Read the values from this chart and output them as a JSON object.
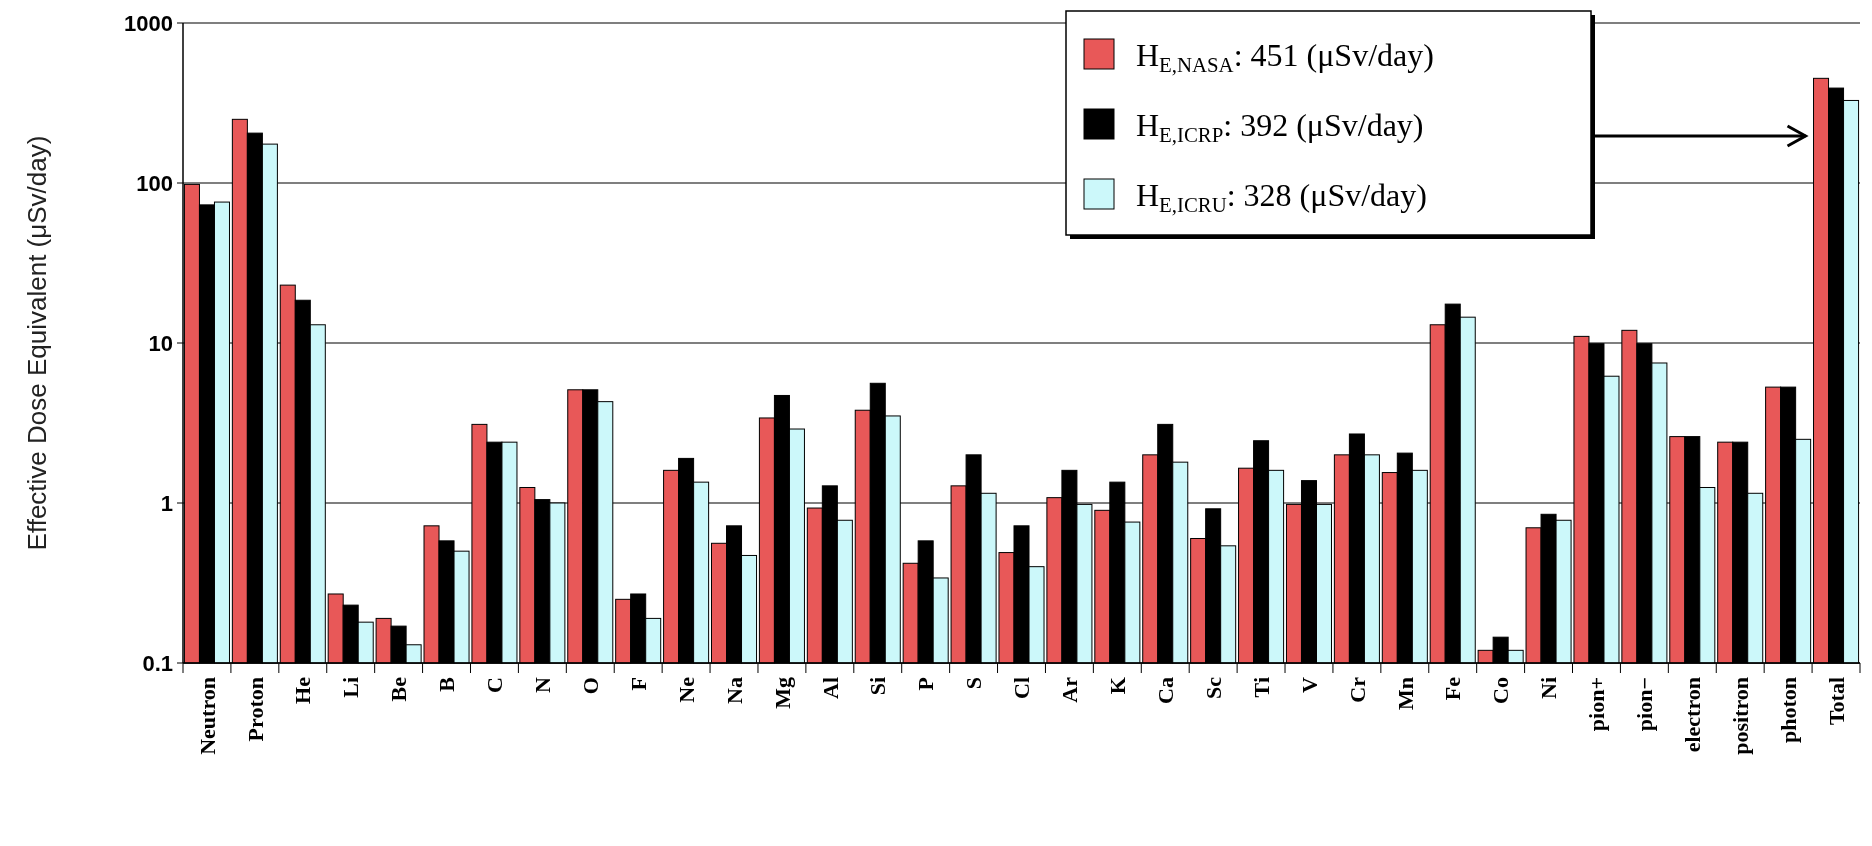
{
  "chart_data": {
    "type": "bar",
    "ylabel": "Effective Dose Equivalent (μSv/day)",
    "categories": [
      "Neutron",
      "Proton",
      "He",
      "Li",
      "Be",
      "B",
      "C",
      "N",
      "O",
      "F",
      "Ne",
      "Na",
      "Mg",
      "Al",
      "Si",
      "P",
      "S",
      "Cl",
      "Ar",
      "K",
      "Ca",
      "Sc",
      "Ti",
      "V",
      "Cr",
      "Mn",
      "Fe",
      "Co",
      "Ni",
      "pion+",
      "pion−",
      "electron",
      "positron",
      "photon",
      "Total"
    ],
    "series": [
      {
        "name": "H$_{E,NASA}$: 451 (μSv/day)",
        "color": "#e85858",
        "values": [
          98,
          250,
          23,
          0.27,
          0.19,
          0.72,
          3.1,
          1.25,
          5.1,
          0.25,
          1.6,
          0.56,
          3.4,
          0.93,
          3.8,
          0.42,
          1.28,
          0.49,
          1.08,
          0.9,
          2.0,
          0.6,
          1.65,
          0.98,
          2.0,
          1.55,
          13,
          0.12,
          0.7,
          11,
          12,
          2.6,
          2.4,
          5.3,
          451
        ]
      },
      {
        "name": "H$_{E,ICRP}$: 392 (μSv/day)",
        "color": "#000000",
        "values": [
          73,
          205,
          18.5,
          0.23,
          0.17,
          0.58,
          2.4,
          1.05,
          5.1,
          0.27,
          1.9,
          0.72,
          4.7,
          1.28,
          5.6,
          0.58,
          2.0,
          0.72,
          1.6,
          1.35,
          3.1,
          0.92,
          2.45,
          1.38,
          2.7,
          2.05,
          17.5,
          0.145,
          0.85,
          9.9,
          9.9,
          2.6,
          2.4,
          5.3,
          392
        ]
      },
      {
        "name": "H$_{E,ICRU}$: 328 (μSv/day)",
        "color": "#ccf8fa",
        "values": [
          76,
          175,
          13,
          0.18,
          0.13,
          0.5,
          2.4,
          1.0,
          4.3,
          0.19,
          1.35,
          0.47,
          2.9,
          0.78,
          3.5,
          0.34,
          1.15,
          0.4,
          0.98,
          0.76,
          1.8,
          0.54,
          1.6,
          0.98,
          2.0,
          1.6,
          14.5,
          0.12,
          0.78,
          6.2,
          7.5,
          1.25,
          1.15,
          2.5,
          328
        ]
      }
    ],
    "log": true,
    "ylim": [
      0.1,
      1000
    ],
    "yticks": [
      0.1,
      1,
      10,
      100,
      1000
    ],
    "grid": "y",
    "legend": "top right"
  }
}
